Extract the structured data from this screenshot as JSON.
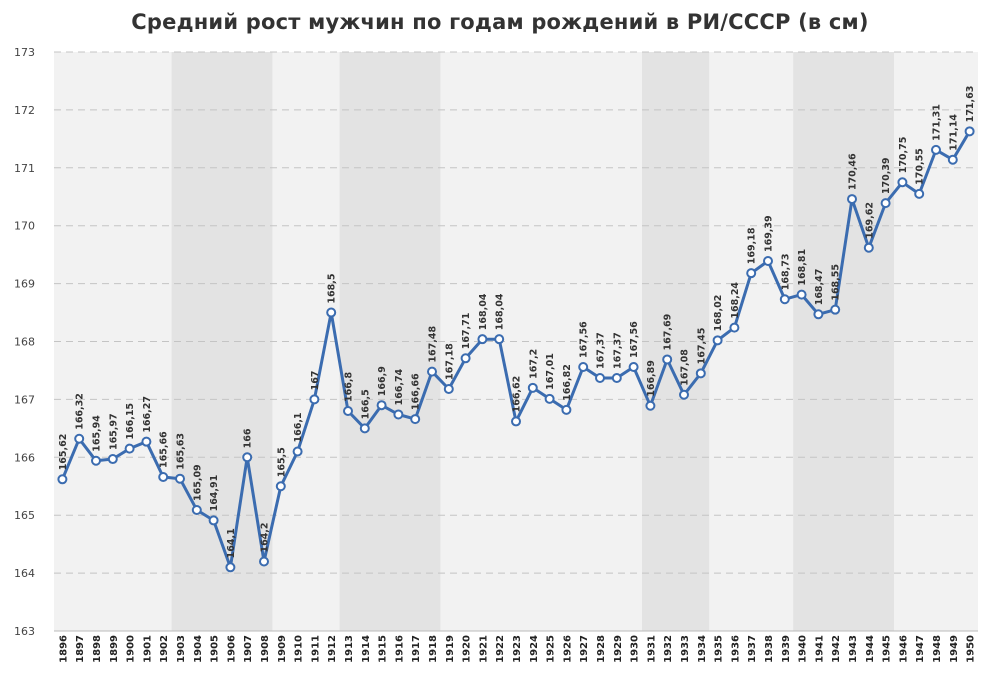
{
  "chart_data": {
    "type": "line",
    "title": "Средний рост мужчин по годам рождений в РИ/СССР (в см)",
    "xlabel": "",
    "ylabel": "",
    "ylim": [
      163,
      173
    ],
    "yticks": [
      "163",
      "164",
      "165",
      "166",
      "167",
      "168",
      "169",
      "170",
      "171",
      "172",
      "173"
    ],
    "grid": "horizontal dashed",
    "legend": "none",
    "line_color": "#3b6cb0",
    "point_fill": "#ffffff",
    "band_color": "#e3e3e3",
    "band_alt_color": "#f2f2f2",
    "shaded_bands": [
      [
        "1903",
        "1908"
      ],
      [
        "1913",
        "1918"
      ],
      [
        "1931",
        "1934"
      ],
      [
        "1940",
        "1945"
      ]
    ],
    "categories": [
      "1896",
      "1897",
      "1898",
      "1899",
      "1900",
      "1901",
      "1902",
      "1903",
      "1904",
      "1905",
      "1906",
      "1907",
      "1908",
      "1909",
      "1910",
      "1911",
      "1912",
      "1913",
      "1914",
      "1915",
      "1916",
      "1917",
      "1918",
      "1919",
      "1920",
      "1921",
      "1922",
      "1923",
      "1924",
      "1925",
      "1926",
      "1927",
      "1928",
      "1929",
      "1930",
      "1931",
      "1932",
      "1933",
      "1934",
      "1935",
      "1936",
      "1937",
      "1938",
      "1939",
      "1940",
      "1941",
      "1942",
      "1943",
      "1944",
      "1945",
      "1946",
      "1947",
      "1948",
      "1949",
      "1950"
    ],
    "values": [
      165.62,
      166.32,
      165.94,
      165.97,
      166.15,
      166.27,
      165.66,
      165.63,
      165.09,
      164.91,
      164.1,
      166,
      164.2,
      165.5,
      166.1,
      167,
      168.5,
      166.8,
      166.5,
      166.9,
      166.74,
      166.66,
      167.48,
      167.18,
      167.71,
      168.04,
      168.04,
      166.62,
      167.2,
      167.01,
      166.82,
      167.56,
      167.37,
      167.37,
      167.56,
      166.89,
      167.69,
      167.08,
      167.45,
      168.02,
      168.24,
      169.18,
      169.39,
      168.73,
      168.81,
      168.47,
      168.55,
      170.46,
      169.62,
      170.39,
      170.75,
      170.55,
      171.31,
      171.14,
      171.63
    ],
    "data_labels": [
      "165,62",
      "166,32",
      "165,94",
      "165,97",
      "166,15",
      "166,27",
      "165,66",
      "165,63",
      "165,09",
      "164,91",
      "164,1",
      "166",
      "164,2",
      "165,5",
      "166,1",
      "167",
      "168,5",
      "166,8",
      "166,5",
      "166,9",
      "166,74",
      "166,66",
      "167,48",
      "167,18",
      "167,71",
      "168,04",
      "168,04",
      "166,62",
      "167,2",
      "167,01",
      "166,82",
      "167,56",
      "167,37",
      "167,37",
      "167,56",
      "166,89",
      "167,69",
      "167,08",
      "167,45",
      "168,02",
      "168,24",
      "169,18",
      "169,39",
      "168,73",
      "168,81",
      "168,47",
      "168,55",
      "170,46",
      "169,62",
      "170,39",
      "170,75",
      "170,55",
      "171,31",
      "171,14",
      "171,63"
    ]
  }
}
